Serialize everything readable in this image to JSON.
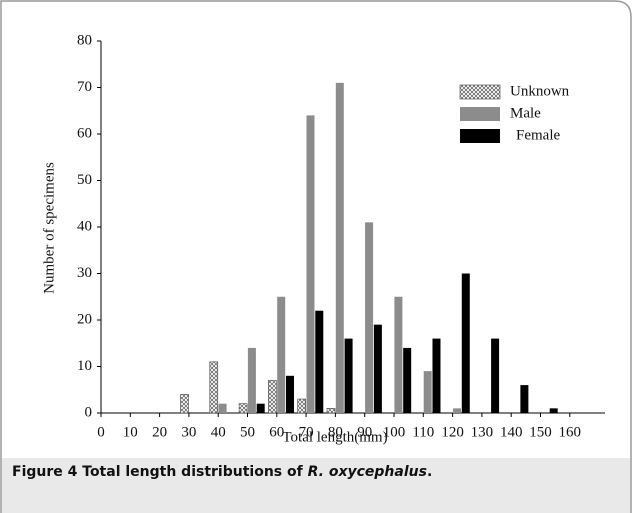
{
  "chart_data": {
    "type": "bar",
    "x_label": "Total length(mm)",
    "y_label": "Number of specimens",
    "x": [
      30,
      40,
      50,
      60,
      70,
      80,
      90,
      100,
      110,
      120,
      130,
      140,
      150
    ],
    "series": [
      {
        "name": "Unknown",
        "color": "#ffffff",
        "pattern": "crosshatch",
        "values": [
          4,
          11,
          2,
          7,
          3,
          1,
          0,
          0,
          0,
          0,
          0,
          0,
          0
        ]
      },
      {
        "name": "Male",
        "color": "#8c8c8c",
        "values": [
          0,
          2,
          14,
          25,
          64,
          71,
          41,
          25,
          9,
          1,
          0,
          0,
          0
        ]
      },
      {
        "name": "Female",
        "color": "#000000",
        "values": [
          0,
          0,
          2,
          8,
          22,
          16,
          19,
          14,
          16,
          30,
          16,
          6,
          1
        ]
      }
    ],
    "xlim": [
      0,
      172
    ],
    "xticks": [
      0,
      10,
      20,
      30,
      40,
      50,
      60,
      70,
      80,
      90,
      100,
      110,
      120,
      130,
      140,
      150,
      160
    ],
    "ylim": [
      0,
      80
    ],
    "yticks": [
      0,
      10,
      20,
      30,
      40,
      50,
      60,
      70,
      80
    ],
    "legend": "top-right"
  },
  "caption": {
    "label": "Figure 4",
    "text": "Total length distributions of",
    "species": "R. oxycephalus",
    "end": "."
  }
}
